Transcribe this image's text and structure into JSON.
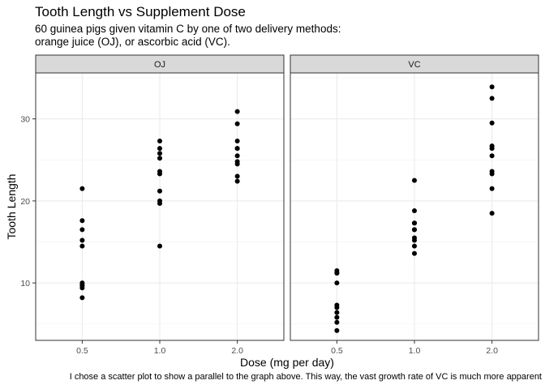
{
  "title": "Tooth Length vs Supplement Dose",
  "subtitle": "60 guinea pigs given vitamin C by one of two delivery methods: orange juice (OJ), or ascorbic acid (VC).",
  "caption": "I chose a scatter plot to show a parallel to the graph above. This way, the vast growth rate of VC is much more apparent",
  "chart_data": {
    "type": "scatter",
    "title": "Tooth Length vs Supplement Dose",
    "subtitle": "60 guinea pigs given vitamin C by one of two delivery methods: orange juice (OJ), or ascorbic acid (VC).",
    "xlabel": "Dose (mg per day)",
    "ylabel": "Tooth Length",
    "x_categories": [
      "0.5",
      "1.0",
      "2.0"
    ],
    "yticks": [
      10,
      20,
      30
    ],
    "ylim": [
      3,
      35.6
    ],
    "grid": true,
    "facets": [
      {
        "name": "OJ",
        "points": [
          {
            "x": "0.5",
            "y": 15.2
          },
          {
            "x": "0.5",
            "y": 21.5
          },
          {
            "x": "0.5",
            "y": 17.6
          },
          {
            "x": "0.5",
            "y": 9.7
          },
          {
            "x": "0.5",
            "y": 14.5
          },
          {
            "x": "0.5",
            "y": 10.0
          },
          {
            "x": "0.5",
            "y": 8.2
          },
          {
            "x": "0.5",
            "y": 9.4
          },
          {
            "x": "0.5",
            "y": 16.5
          },
          {
            "x": "0.5",
            "y": 9.7
          },
          {
            "x": "1.0",
            "y": 19.7
          },
          {
            "x": "1.0",
            "y": 23.3
          },
          {
            "x": "1.0",
            "y": 23.6
          },
          {
            "x": "1.0",
            "y": 26.4
          },
          {
            "x": "1.0",
            "y": 20.0
          },
          {
            "x": "1.0",
            "y": 25.2
          },
          {
            "x": "1.0",
            "y": 25.8
          },
          {
            "x": "1.0",
            "y": 21.2
          },
          {
            "x": "1.0",
            "y": 14.5
          },
          {
            "x": "1.0",
            "y": 27.3
          },
          {
            "x": "2.0",
            "y": 25.5
          },
          {
            "x": "2.0",
            "y": 26.4
          },
          {
            "x": "2.0",
            "y": 22.4
          },
          {
            "x": "2.0",
            "y": 24.5
          },
          {
            "x": "2.0",
            "y": 24.8
          },
          {
            "x": "2.0",
            "y": 30.9
          },
          {
            "x": "2.0",
            "y": 26.4
          },
          {
            "x": "2.0",
            "y": 27.3
          },
          {
            "x": "2.0",
            "y": 29.4
          },
          {
            "x": "2.0",
            "y": 23.0
          }
        ]
      },
      {
        "name": "VC",
        "points": [
          {
            "x": "0.5",
            "y": 4.2
          },
          {
            "x": "0.5",
            "y": 11.5
          },
          {
            "x": "0.5",
            "y": 7.3
          },
          {
            "x": "0.5",
            "y": 5.8
          },
          {
            "x": "0.5",
            "y": 6.4
          },
          {
            "x": "0.5",
            "y": 10.0
          },
          {
            "x": "0.5",
            "y": 11.2
          },
          {
            "x": "0.5",
            "y": 11.2
          },
          {
            "x": "0.5",
            "y": 5.2
          },
          {
            "x": "0.5",
            "y": 7.0
          },
          {
            "x": "1.0",
            "y": 16.5
          },
          {
            "x": "1.0",
            "y": 16.5
          },
          {
            "x": "1.0",
            "y": 15.2
          },
          {
            "x": "1.0",
            "y": 17.3
          },
          {
            "x": "1.0",
            "y": 22.5
          },
          {
            "x": "1.0",
            "y": 17.3
          },
          {
            "x": "1.0",
            "y": 13.6
          },
          {
            "x": "1.0",
            "y": 14.5
          },
          {
            "x": "1.0",
            "y": 18.8
          },
          {
            "x": "1.0",
            "y": 15.5
          },
          {
            "x": "2.0",
            "y": 23.6
          },
          {
            "x": "2.0",
            "y": 18.5
          },
          {
            "x": "2.0",
            "y": 33.9
          },
          {
            "x": "2.0",
            "y": 25.5
          },
          {
            "x": "2.0",
            "y": 26.4
          },
          {
            "x": "2.0",
            "y": 32.5
          },
          {
            "x": "2.0",
            "y": 26.7
          },
          {
            "x": "2.0",
            "y": 21.5
          },
          {
            "x": "2.0",
            "y": 23.3
          },
          {
            "x": "2.0",
            "y": 29.5
          }
        ]
      }
    ]
  }
}
